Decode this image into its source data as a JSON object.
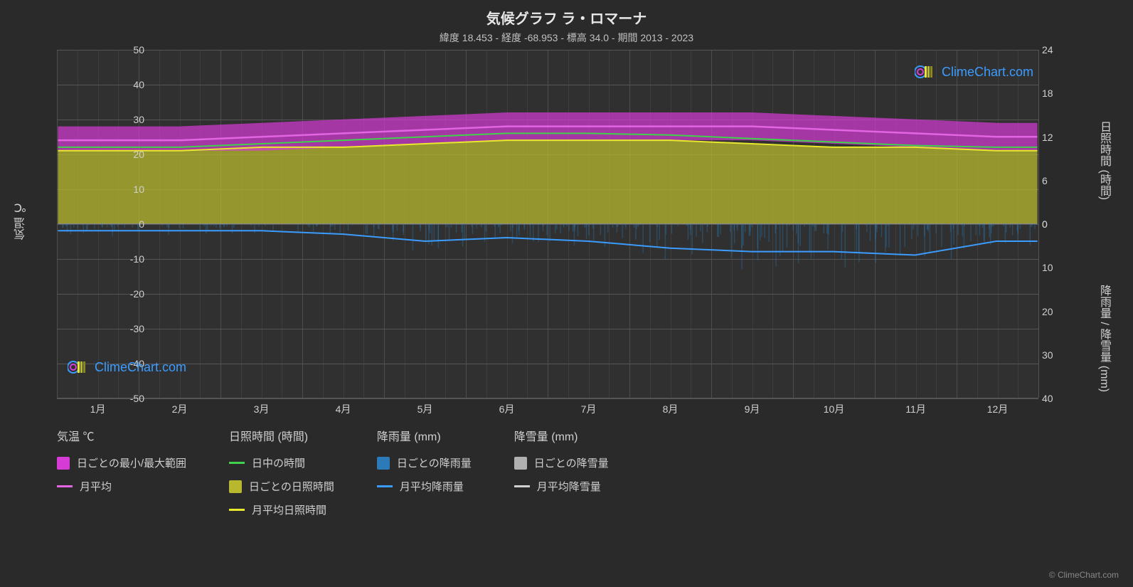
{
  "title": "気候グラフ ラ・ロマーナ",
  "subtitle": "緯度 18.453 - 経度 -68.953 - 標高 34.0 - 期間 2013 - 2023",
  "watermark_text": "ClimeChart.com",
  "copyright": "© ClimeChart.com",
  "chart": {
    "type": "climate-composite",
    "background_color": "#2a2a2a",
    "plot_background": "#303030",
    "grid_color": "#555555",
    "text_color": "#d0d0d0",
    "y_left": {
      "title": "気温 ℃",
      "min": -50,
      "max": 50,
      "ticks": [
        -50,
        -40,
        -30,
        -20,
        -10,
        0,
        10,
        20,
        30,
        40,
        50
      ]
    },
    "y_right_top": {
      "title": "日照時間 (時間)",
      "min": 0,
      "max": 24,
      "ticks": [
        0,
        6,
        12,
        18,
        24
      ]
    },
    "y_right_bottom": {
      "title": "降雨量 / 降雪量 (mm)",
      "min": 0,
      "max": 40,
      "ticks": [
        0,
        10,
        20,
        30,
        40
      ]
    },
    "x": {
      "labels": [
        "1月",
        "2月",
        "3月",
        "4月",
        "5月",
        "6月",
        "7月",
        "8月",
        "9月",
        "10月",
        "11月",
        "12月"
      ]
    },
    "series": {
      "temp_range": {
        "color": "#d63bd6",
        "low": [
          21,
          21,
          21,
          22,
          23,
          24,
          24,
          24,
          24,
          23,
          22,
          21
        ],
        "high": [
          28,
          28,
          29,
          30,
          31,
          32,
          32,
          32,
          32,
          31,
          30,
          29
        ]
      },
      "temp_avg": {
        "color": "#e265e2",
        "values": [
          24,
          24,
          25,
          26,
          27,
          28,
          28,
          28,
          28,
          27,
          26,
          25
        ]
      },
      "daylight": {
        "color": "#3fd24a",
        "values": [
          22,
          22,
          23,
          24,
          25,
          26,
          26,
          25.5,
          24.5,
          23.5,
          22.5,
          22
        ]
      },
      "sunshine_fill": {
        "color": "#b8b82e",
        "top_values": [
          21,
          21,
          22,
          22,
          23,
          24,
          24,
          24,
          23,
          22,
          22,
          21
        ]
      },
      "sunshine_avg": {
        "color": "#e8e82e",
        "values": [
          21,
          21,
          22,
          22,
          23,
          24,
          24,
          24,
          23,
          22,
          22,
          21
        ]
      },
      "rain_daily": {
        "color": "#2a7bb8",
        "sample_intensity": 0.4
      },
      "rain_avg": {
        "color": "#3b9cff",
        "values": [
          -2,
          -2,
          -2,
          -3,
          -5,
          -4,
          -5,
          -7,
          -8,
          -8,
          -9,
          -5
        ]
      },
      "snow_daily": {
        "color": "#b0b0b0"
      },
      "snow_avg": {
        "color": "#d0d0d0",
        "values": [
          0,
          0,
          0,
          0,
          0,
          0,
          0,
          0,
          0,
          0,
          0,
          0
        ]
      }
    }
  },
  "legend": {
    "groups": [
      {
        "header": "気温 ℃",
        "items": [
          {
            "type": "swatch",
            "color": "#d63bd6",
            "label": "日ごとの最小/最大範囲"
          },
          {
            "type": "line",
            "color": "#e265e2",
            "label": "月平均"
          }
        ]
      },
      {
        "header": "日照時間 (時間)",
        "items": [
          {
            "type": "line",
            "color": "#3fd24a",
            "label": "日中の時間"
          },
          {
            "type": "swatch",
            "color": "#b8b82e",
            "label": "日ごとの日照時間"
          },
          {
            "type": "line",
            "color": "#e8e82e",
            "label": "月平均日照時間"
          }
        ]
      },
      {
        "header": "降雨量 (mm)",
        "items": [
          {
            "type": "swatch",
            "color": "#2a7bb8",
            "label": "日ごとの降雨量"
          },
          {
            "type": "line",
            "color": "#3b9cff",
            "label": "月平均降雨量"
          }
        ]
      },
      {
        "header": "降雪量 (mm)",
        "items": [
          {
            "type": "swatch",
            "color": "#b0b0b0",
            "label": "日ごとの降雪量"
          },
          {
            "type": "line",
            "color": "#d0d0d0",
            "label": "月平均降雪量"
          }
        ]
      }
    ]
  }
}
